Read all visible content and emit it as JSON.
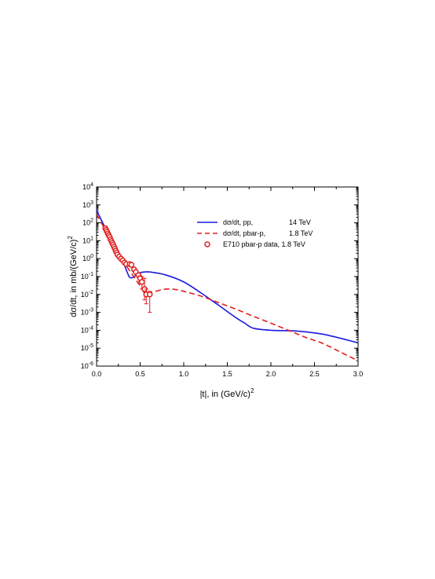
{
  "chart_data": {
    "type": "line",
    "xlabel": "|t|,  in (GeV/c)",
    "xlabel_sup": "2",
    "ylabel": "dσ/dt,  in mb/(GeV/c)",
    "ylabel_sup": "2",
    "xlim": [
      0.0,
      3.0
    ],
    "ylim_log10": [
      -6,
      4
    ],
    "y_scale": "log",
    "x_ticks": [
      "0.0",
      "0.5",
      "1.0",
      "1.5",
      "2.0",
      "2.5",
      "3.0"
    ],
    "y_tick_exponents": [
      "4",
      "3",
      "2",
      "1",
      "0",
      "-1",
      "-2",
      "-3",
      "-4",
      "-5",
      "-6"
    ],
    "y_tick_base": "10",
    "legend_position": "upper-right",
    "series": [
      {
        "name": "dσ/dt, pp,",
        "legend_energy": "14  TeV",
        "style": "solid",
        "color": "#1a1adf",
        "points": [
          [
            0.0,
            500
          ],
          [
            0.1,
            50
          ],
          [
            0.2,
            5
          ],
          [
            0.3,
            0.7
          ],
          [
            0.35,
            0.18
          ],
          [
            0.38,
            0.09
          ],
          [
            0.42,
            0.09
          ],
          [
            0.48,
            0.15
          ],
          [
            0.55,
            0.18
          ],
          [
            0.65,
            0.17
          ],
          [
            0.8,
            0.12
          ],
          [
            1.0,
            0.05
          ],
          [
            1.2,
            0.012
          ],
          [
            1.4,
            0.0025
          ],
          [
            1.6,
            0.0005
          ],
          [
            1.7,
            0.00025
          ],
          [
            1.8,
            0.00013
          ],
          [
            2.0,
            0.0001
          ],
          [
            2.3,
            9e-05
          ],
          [
            2.6,
            6e-05
          ],
          [
            3.0,
            2e-05
          ]
        ]
      },
      {
        "name": "dσ/dt, pbar-p,",
        "legend_energy": "1.8 TeV",
        "style": "dashed",
        "color": "#e02020",
        "points": [
          [
            0.0,
            300
          ],
          [
            0.1,
            40
          ],
          [
            0.2,
            5
          ],
          [
            0.3,
            0.8
          ],
          [
            0.4,
            0.15
          ],
          [
            0.5,
            0.03
          ],
          [
            0.55,
            0.012
          ],
          [
            0.6,
            0.012
          ],
          [
            0.7,
            0.016
          ],
          [
            0.8,
            0.02
          ],
          [
            0.9,
            0.019
          ],
          [
            1.0,
            0.015
          ],
          [
            1.2,
            0.008
          ],
          [
            1.4,
            0.0035
          ],
          [
            1.6,
            0.0015
          ],
          [
            1.8,
            0.0006
          ],
          [
            2.0,
            0.00025
          ],
          [
            2.2,
            0.0001
          ],
          [
            2.4,
            4e-05
          ],
          [
            2.6,
            1.8e-05
          ],
          [
            2.8,
            6e-06
          ],
          [
            3.0,
            2e-06
          ]
        ]
      },
      {
        "name": "E710 pbar-p data, 1.8 TeV",
        "style": "markers",
        "color": "#e02020",
        "points": [
          {
            "x": 0.1,
            "y": 50,
            "lo": 45,
            "hi": 56
          },
          {
            "x": 0.11,
            "y": 40,
            "lo": 36,
            "hi": 44
          },
          {
            "x": 0.12,
            "y": 32,
            "lo": 29,
            "hi": 36
          },
          {
            "x": 0.13,
            "y": 25,
            "lo": 22,
            "hi": 28
          },
          {
            "x": 0.14,
            "y": 20,
            "lo": 18,
            "hi": 22
          },
          {
            "x": 0.15,
            "y": 16,
            "lo": 14,
            "hi": 18
          },
          {
            "x": 0.16,
            "y": 12,
            "lo": 11,
            "hi": 14
          },
          {
            "x": 0.17,
            "y": 9.5,
            "lo": 8.5,
            "hi": 10.5
          },
          {
            "x": 0.18,
            "y": 7.5,
            "lo": 6.8,
            "hi": 8.3
          },
          {
            "x": 0.19,
            "y": 6,
            "lo": 5.4,
            "hi": 6.6
          },
          {
            "x": 0.2,
            "y": 4.6,
            "lo": 4.1,
            "hi": 5.1
          },
          {
            "x": 0.21,
            "y": 3.6,
            "lo": 3.2,
            "hi": 4.0
          },
          {
            "x": 0.22,
            "y": 2.8,
            "lo": 2.5,
            "hi": 3.1
          },
          {
            "x": 0.23,
            "y": 2.2,
            "lo": 1.9,
            "hi": 2.5
          },
          {
            "x": 0.24,
            "y": 1.7,
            "lo": 1.5,
            "hi": 1.9
          },
          {
            "x": 0.26,
            "y": 1.3,
            "lo": 1.15,
            "hi": 1.45
          },
          {
            "x": 0.28,
            "y": 1.0,
            "lo": 0.88,
            "hi": 1.12
          },
          {
            "x": 0.3,
            "y": 0.8,
            "lo": 0.7,
            "hi": 0.9
          },
          {
            "x": 0.32,
            "y": 0.6,
            "lo": 0.52,
            "hi": 0.68
          },
          {
            "x": 0.34,
            "y": 0.5,
            "lo": 0.43,
            "hi": 0.57
          },
          {
            "x": 0.38,
            "y": 0.5,
            "lo": 0.42,
            "hi": 0.58
          },
          {
            "x": 0.4,
            "y": 0.45,
            "lo": 0.37,
            "hi": 0.53
          },
          {
            "x": 0.43,
            "y": 0.25,
            "lo": 0.2,
            "hi": 0.3
          },
          {
            "x": 0.45,
            "y": 0.18,
            "lo": 0.14,
            "hi": 0.22
          },
          {
            "x": 0.48,
            "y": 0.12,
            "lo": 0.09,
            "hi": 0.15
          },
          {
            "x": 0.5,
            "y": 0.08,
            "lo": 0.05,
            "hi": 0.11
          },
          {
            "x": 0.52,
            "y": 0.05,
            "lo": 0.02,
            "hi": 0.1
          },
          {
            "x": 0.55,
            "y": 0.02,
            "lo": 0.005,
            "hi": 0.08
          },
          {
            "x": 0.57,
            "y": 0.01,
            "lo": 0.003,
            "hi": 0.02
          },
          {
            "x": 0.61,
            "y": 0.01,
            "lo": 0.001,
            "hi": 0.015
          }
        ]
      }
    ]
  }
}
